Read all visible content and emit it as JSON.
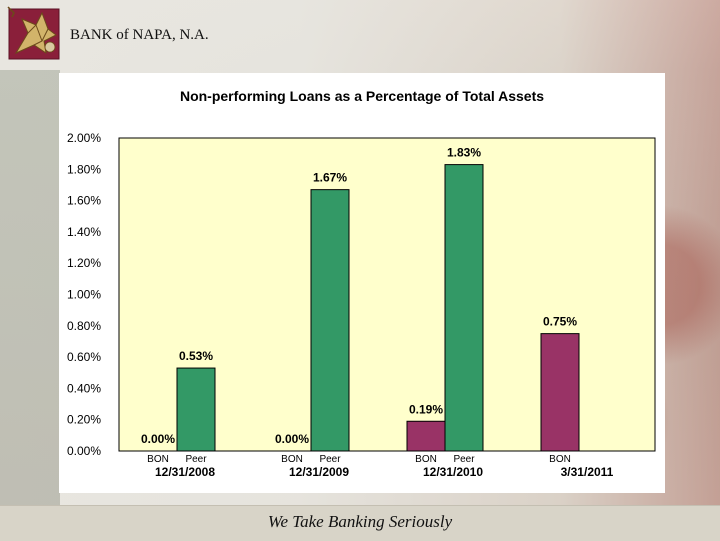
{
  "header": {
    "bank_name": "BANK of NAPA, N.A.",
    "logo_icon": "grape-leaf-icon"
  },
  "footer": {
    "tagline": "We Take Banking Seriously"
  },
  "colors": {
    "bon": "#993366",
    "peer": "#339966",
    "plot_bg": "#ffffcc"
  },
  "chart_data": {
    "type": "bar",
    "title": "Non-performing Loans as a Percentage of Total Assets",
    "ylim": [
      0,
      2.0
    ],
    "yticks": [
      "0.00%",
      "0.20%",
      "0.40%",
      "0.60%",
      "0.80%",
      "1.00%",
      "1.20%",
      "1.40%",
      "1.60%",
      "1.80%",
      "2.00%"
    ],
    "grid": false,
    "groups": [
      {
        "date": "12/31/2008",
        "bars": [
          {
            "series": "BON",
            "value": 0.0,
            "label": "0.00%"
          },
          {
            "series": "Peer",
            "value": 0.53,
            "label": "0.53%"
          }
        ]
      },
      {
        "date": "12/31/2009",
        "bars": [
          {
            "series": "BON",
            "value": 0.0,
            "label": "0.00%"
          },
          {
            "series": "Peer",
            "value": 1.67,
            "label": "1.67%"
          }
        ]
      },
      {
        "date": "12/31/2010",
        "bars": [
          {
            "series": "BON",
            "value": 0.19,
            "label": "0.19%"
          },
          {
            "series": "Peer",
            "value": 1.83,
            "label": "1.83%"
          }
        ]
      },
      {
        "date": "3/31/2011",
        "bars": [
          {
            "series": "BON",
            "value": 0.75,
            "label": "0.75%"
          }
        ]
      }
    ]
  }
}
